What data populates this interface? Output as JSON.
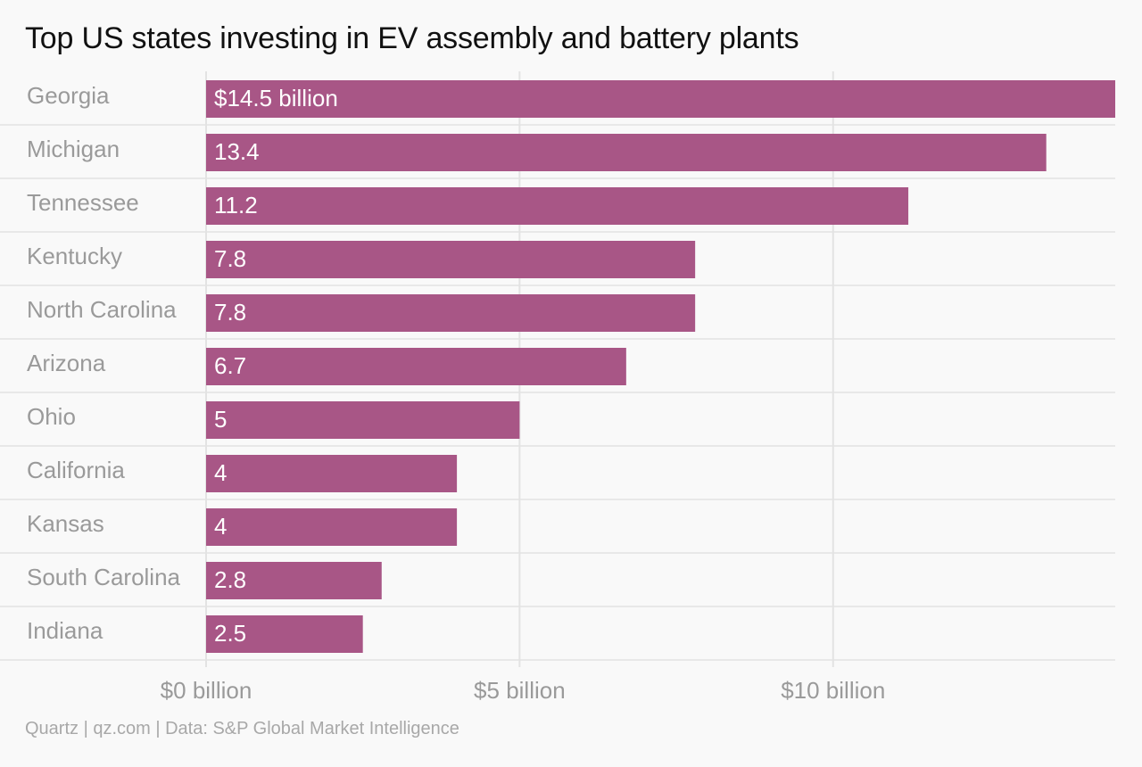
{
  "title": "Top US states investing in EV assembly and battery plants",
  "source": "Quartz | qz.com | Data: S&P Global Market Intelligence",
  "colors": {
    "bar": "#a85686",
    "grid": "#e3e3e3",
    "label": "#9a9a9a",
    "background": "#f9f9f9"
  },
  "chart_data": {
    "type": "bar",
    "orientation": "horizontal",
    "title": "Top US states investing in EV assembly and battery plants",
    "categories": [
      "Georgia",
      "Michigan",
      "Tennessee",
      "Kentucky",
      "North Carolina",
      "Arizona",
      "Ohio",
      "California",
      "Kansas",
      "South Carolina",
      "Indiana"
    ],
    "values": [
      14.5,
      13.4,
      11.2,
      7.8,
      7.8,
      6.7,
      5,
      4,
      4,
      2.8,
      2.5
    ],
    "value_labels": [
      "$14.5 billion",
      "13.4",
      "11.2",
      "7.8",
      "7.8",
      "6.7",
      "5",
      "4",
      "4",
      "2.8",
      "2.5"
    ],
    "xlim": [
      0,
      14.5
    ],
    "xticks": [
      0,
      5,
      10
    ],
    "xtick_labels": [
      "$0 billion",
      "$5 billion",
      "$10 billion"
    ],
    "grid": true,
    "legend": "none"
  }
}
